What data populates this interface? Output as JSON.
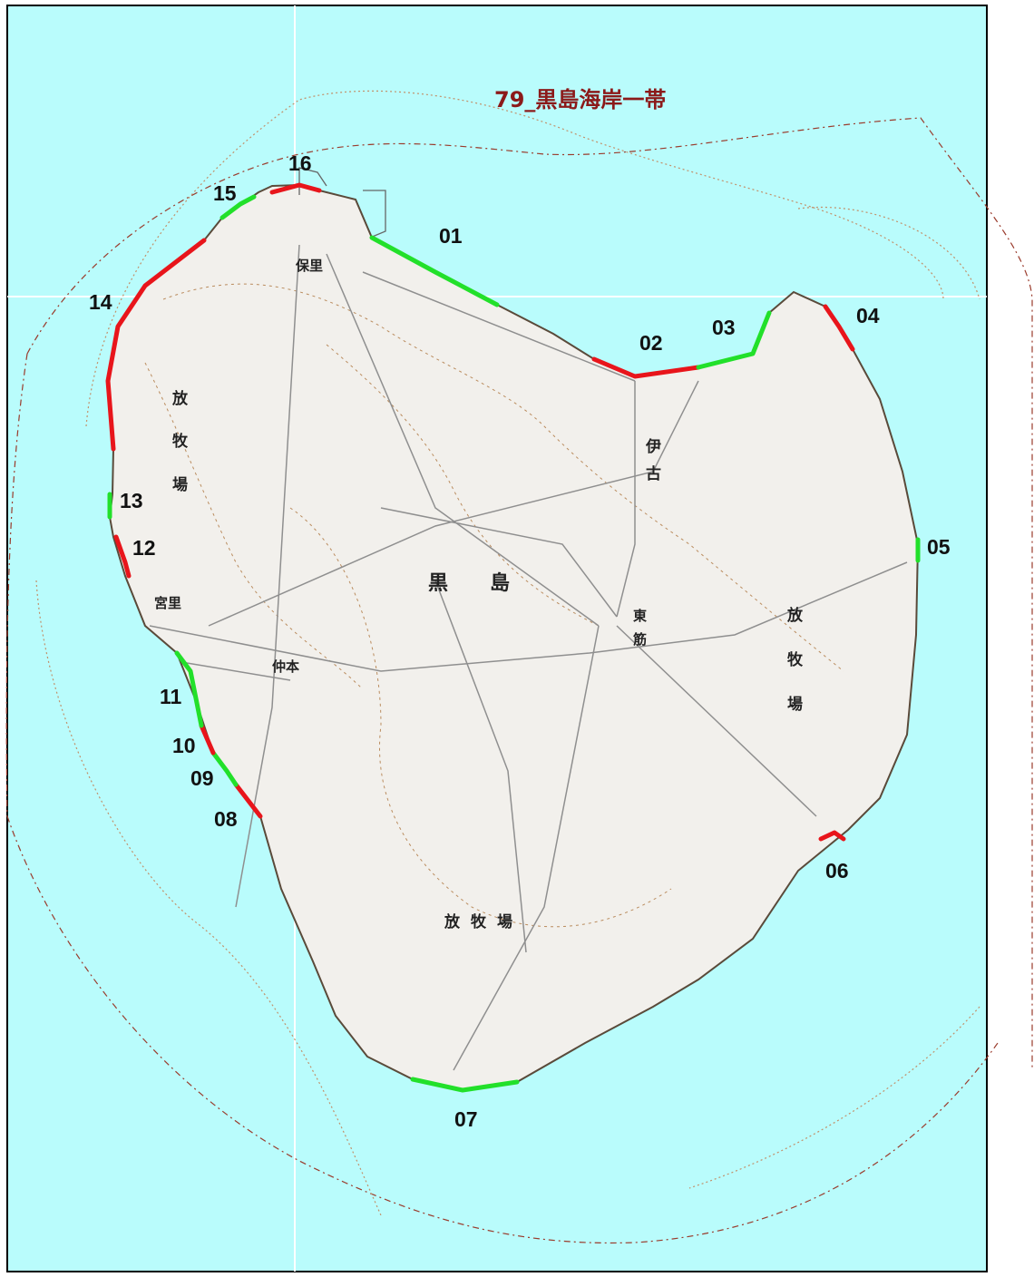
{
  "title": "79_黒島海岸一帯",
  "colors": {
    "sea": "#b9fcfc",
    "land": "#f2f0ec",
    "title": "#8b1a1a",
    "segment_red": "#e8151b",
    "segment_green": "#22e02a",
    "boundary": "#9a3b2c"
  },
  "island_name": [
    "黒",
    "島"
  ],
  "places": {
    "hogasato": "保里",
    "miyasato": "宮里",
    "nakamoto": "仲本",
    "ishiko": [
      "伊",
      "古"
    ],
    "azuma": [
      "東",
      "筋"
    ]
  },
  "pasture_label_chars": [
    "放",
    "牧",
    "場"
  ],
  "pasture_south": "放牧場",
  "segments": [
    {
      "id": "01",
      "color": "green"
    },
    {
      "id": "02",
      "color": "red"
    },
    {
      "id": "03",
      "color": "green"
    },
    {
      "id": "04",
      "color": "red"
    },
    {
      "id": "05",
      "color": "green"
    },
    {
      "id": "06",
      "color": "red"
    },
    {
      "id": "07",
      "color": "green"
    },
    {
      "id": "08",
      "color": "red"
    },
    {
      "id": "09",
      "color": "green"
    },
    {
      "id": "10",
      "color": "red"
    },
    {
      "id": "11",
      "color": "green"
    },
    {
      "id": "12",
      "color": "red"
    },
    {
      "id": "13",
      "color": "green"
    },
    {
      "id": "14",
      "color": "red"
    },
    {
      "id": "15",
      "color": "green"
    },
    {
      "id": "16",
      "color": "red"
    }
  ]
}
